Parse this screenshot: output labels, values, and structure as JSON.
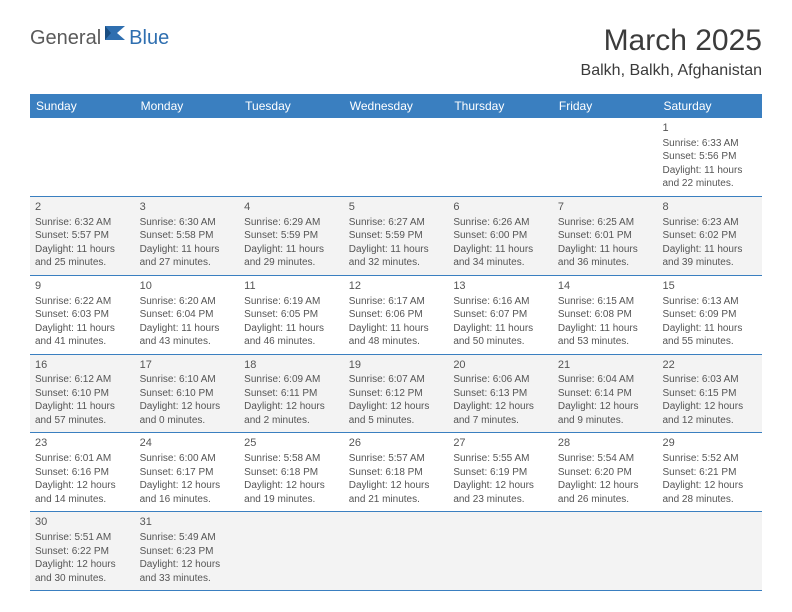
{
  "logo": {
    "text1": "General",
    "text2": "Blue"
  },
  "title": {
    "month": "March 2025",
    "location": "Balkh, Balkh, Afghanistan"
  },
  "colors": {
    "header_bar": "#3a7fc0",
    "shaded": "#f3f3f3",
    "text": "#555555",
    "line": "#3a7fc0"
  },
  "weekdays": [
    "Sunday",
    "Monday",
    "Tuesday",
    "Wednesday",
    "Thursday",
    "Friday",
    "Saturday"
  ],
  "weeks": [
    [
      {
        "blank": true
      },
      {
        "blank": true
      },
      {
        "blank": true
      },
      {
        "blank": true
      },
      {
        "blank": true
      },
      {
        "blank": true
      },
      {
        "num": "1",
        "sunrise": "Sunrise: 6:33 AM",
        "sunset": "Sunset: 5:56 PM",
        "day1": "Daylight: 11 hours",
        "day2": "and 22 minutes."
      }
    ],
    [
      {
        "num": "2",
        "sunrise": "Sunrise: 6:32 AM",
        "sunset": "Sunset: 5:57 PM",
        "day1": "Daylight: 11 hours",
        "day2": "and 25 minutes."
      },
      {
        "num": "3",
        "sunrise": "Sunrise: 6:30 AM",
        "sunset": "Sunset: 5:58 PM",
        "day1": "Daylight: 11 hours",
        "day2": "and 27 minutes."
      },
      {
        "num": "4",
        "sunrise": "Sunrise: 6:29 AM",
        "sunset": "Sunset: 5:59 PM",
        "day1": "Daylight: 11 hours",
        "day2": "and 29 minutes."
      },
      {
        "num": "5",
        "sunrise": "Sunrise: 6:27 AM",
        "sunset": "Sunset: 5:59 PM",
        "day1": "Daylight: 11 hours",
        "day2": "and 32 minutes."
      },
      {
        "num": "6",
        "sunrise": "Sunrise: 6:26 AM",
        "sunset": "Sunset: 6:00 PM",
        "day1": "Daylight: 11 hours",
        "day2": "and 34 minutes."
      },
      {
        "num": "7",
        "sunrise": "Sunrise: 6:25 AM",
        "sunset": "Sunset: 6:01 PM",
        "day1": "Daylight: 11 hours",
        "day2": "and 36 minutes."
      },
      {
        "num": "8",
        "sunrise": "Sunrise: 6:23 AM",
        "sunset": "Sunset: 6:02 PM",
        "day1": "Daylight: 11 hours",
        "day2": "and 39 minutes."
      }
    ],
    [
      {
        "num": "9",
        "sunrise": "Sunrise: 6:22 AM",
        "sunset": "Sunset: 6:03 PM",
        "day1": "Daylight: 11 hours",
        "day2": "and 41 minutes."
      },
      {
        "num": "10",
        "sunrise": "Sunrise: 6:20 AM",
        "sunset": "Sunset: 6:04 PM",
        "day1": "Daylight: 11 hours",
        "day2": "and 43 minutes."
      },
      {
        "num": "11",
        "sunrise": "Sunrise: 6:19 AM",
        "sunset": "Sunset: 6:05 PM",
        "day1": "Daylight: 11 hours",
        "day2": "and 46 minutes."
      },
      {
        "num": "12",
        "sunrise": "Sunrise: 6:17 AM",
        "sunset": "Sunset: 6:06 PM",
        "day1": "Daylight: 11 hours",
        "day2": "and 48 minutes."
      },
      {
        "num": "13",
        "sunrise": "Sunrise: 6:16 AM",
        "sunset": "Sunset: 6:07 PM",
        "day1": "Daylight: 11 hours",
        "day2": "and 50 minutes."
      },
      {
        "num": "14",
        "sunrise": "Sunrise: 6:15 AM",
        "sunset": "Sunset: 6:08 PM",
        "day1": "Daylight: 11 hours",
        "day2": "and 53 minutes."
      },
      {
        "num": "15",
        "sunrise": "Sunrise: 6:13 AM",
        "sunset": "Sunset: 6:09 PM",
        "day1": "Daylight: 11 hours",
        "day2": "and 55 minutes."
      }
    ],
    [
      {
        "num": "16",
        "sunrise": "Sunrise: 6:12 AM",
        "sunset": "Sunset: 6:10 PM",
        "day1": "Daylight: 11 hours",
        "day2": "and 57 minutes."
      },
      {
        "num": "17",
        "sunrise": "Sunrise: 6:10 AM",
        "sunset": "Sunset: 6:10 PM",
        "day1": "Daylight: 12 hours",
        "day2": "and 0 minutes."
      },
      {
        "num": "18",
        "sunrise": "Sunrise: 6:09 AM",
        "sunset": "Sunset: 6:11 PM",
        "day1": "Daylight: 12 hours",
        "day2": "and 2 minutes."
      },
      {
        "num": "19",
        "sunrise": "Sunrise: 6:07 AM",
        "sunset": "Sunset: 6:12 PM",
        "day1": "Daylight: 12 hours",
        "day2": "and 5 minutes."
      },
      {
        "num": "20",
        "sunrise": "Sunrise: 6:06 AM",
        "sunset": "Sunset: 6:13 PM",
        "day1": "Daylight: 12 hours",
        "day2": "and 7 minutes."
      },
      {
        "num": "21",
        "sunrise": "Sunrise: 6:04 AM",
        "sunset": "Sunset: 6:14 PM",
        "day1": "Daylight: 12 hours",
        "day2": "and 9 minutes."
      },
      {
        "num": "22",
        "sunrise": "Sunrise: 6:03 AM",
        "sunset": "Sunset: 6:15 PM",
        "day1": "Daylight: 12 hours",
        "day2": "and 12 minutes."
      }
    ],
    [
      {
        "num": "23",
        "sunrise": "Sunrise: 6:01 AM",
        "sunset": "Sunset: 6:16 PM",
        "day1": "Daylight: 12 hours",
        "day2": "and 14 minutes."
      },
      {
        "num": "24",
        "sunrise": "Sunrise: 6:00 AM",
        "sunset": "Sunset: 6:17 PM",
        "day1": "Daylight: 12 hours",
        "day2": "and 16 minutes."
      },
      {
        "num": "25",
        "sunrise": "Sunrise: 5:58 AM",
        "sunset": "Sunset: 6:18 PM",
        "day1": "Daylight: 12 hours",
        "day2": "and 19 minutes."
      },
      {
        "num": "26",
        "sunrise": "Sunrise: 5:57 AM",
        "sunset": "Sunset: 6:18 PM",
        "day1": "Daylight: 12 hours",
        "day2": "and 21 minutes."
      },
      {
        "num": "27",
        "sunrise": "Sunrise: 5:55 AM",
        "sunset": "Sunset: 6:19 PM",
        "day1": "Daylight: 12 hours",
        "day2": "and 23 minutes."
      },
      {
        "num": "28",
        "sunrise": "Sunrise: 5:54 AM",
        "sunset": "Sunset: 6:20 PM",
        "day1": "Daylight: 12 hours",
        "day2": "and 26 minutes."
      },
      {
        "num": "29",
        "sunrise": "Sunrise: 5:52 AM",
        "sunset": "Sunset: 6:21 PM",
        "day1": "Daylight: 12 hours",
        "day2": "and 28 minutes."
      }
    ],
    [
      {
        "num": "30",
        "sunrise": "Sunrise: 5:51 AM",
        "sunset": "Sunset: 6:22 PM",
        "day1": "Daylight: 12 hours",
        "day2": "and 30 minutes."
      },
      {
        "num": "31",
        "sunrise": "Sunrise: 5:49 AM",
        "sunset": "Sunset: 6:23 PM",
        "day1": "Daylight: 12 hours",
        "day2": "and 33 minutes."
      },
      {
        "blank": true
      },
      {
        "blank": true
      },
      {
        "blank": true
      },
      {
        "blank": true
      },
      {
        "blank": true
      }
    ]
  ]
}
